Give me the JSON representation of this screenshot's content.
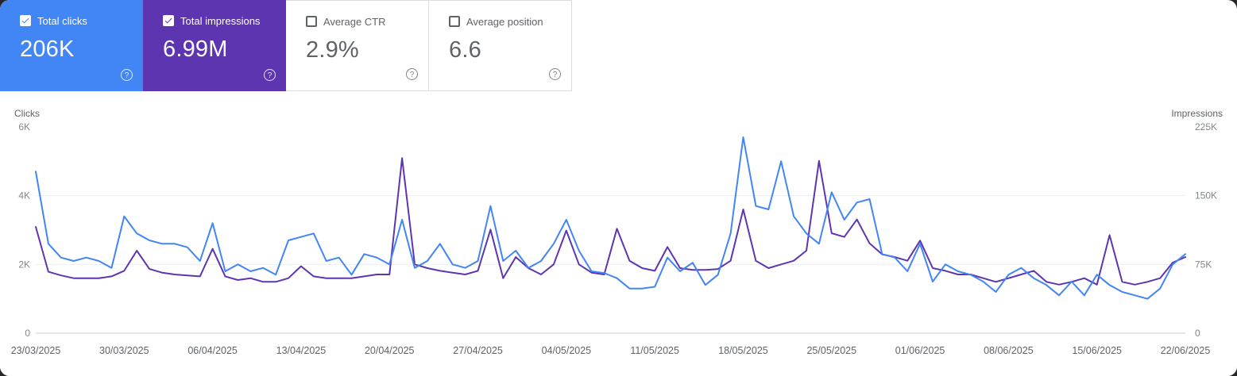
{
  "cards": [
    {
      "label": "Total clicks",
      "value": "206K",
      "selected": true,
      "color": "#4285f4",
      "help_icon": "question-mark"
    },
    {
      "label": "Total impressions",
      "value": "6.99M",
      "selected": true,
      "color": "#5e35b1",
      "help_icon": "question-mark"
    },
    {
      "label": "Average CTR",
      "value": "2.9%",
      "selected": false,
      "help_icon": "question-mark"
    },
    {
      "label": "Average position",
      "value": "6.6",
      "selected": false,
      "help_icon": "question-mark"
    }
  ],
  "chart_data": {
    "type": "line",
    "x_dates": [
      "23/03/2025",
      "30/03/2025",
      "06/04/2025",
      "13/04/2025",
      "20/04/2025",
      "27/04/2025",
      "04/05/2025",
      "11/05/2025",
      "18/05/2025",
      "25/05/2025",
      "01/06/2025",
      "08/06/2025",
      "15/06/2025",
      "22/06/2025"
    ],
    "left_axis": {
      "label": "Clicks",
      "max": 6000,
      "tick_values": [
        0,
        2000,
        4000,
        6000
      ],
      "tick_labels": [
        "0",
        "2K",
        "4K",
        "6K"
      ]
    },
    "right_axis": {
      "label": "Impressions",
      "max": 225000,
      "tick_values": [
        0,
        75000,
        150000,
        225000
      ],
      "tick_labels": [
        "0",
        "75K",
        "150K",
        "225K"
      ]
    },
    "grid": "horizontal-only",
    "legend_position": "none",
    "series": [
      {
        "name": "Total impressions",
        "axis": "right",
        "color": "#5e35b1",
        "values": [
          116000,
          67000,
          63000,
          60000,
          60000,
          60000,
          62000,
          68000,
          90000,
          70000,
          66000,
          64000,
          63000,
          62000,
          92000,
          62000,
          58000,
          60000,
          56000,
          56000,
          60000,
          73000,
          62000,
          60000,
          60000,
          60000,
          62000,
          64000,
          64000,
          191000,
          75000,
          71000,
          68000,
          66000,
          64000,
          68000,
          113000,
          60000,
          83000,
          71000,
          64000,
          75000,
          112000,
          75000,
          66000,
          64000,
          114000,
          79000,
          71000,
          68000,
          94000,
          71000,
          69000,
          69000,
          70000,
          79000,
          135000,
          79000,
          71000,
          75000,
          79000,
          90000,
          188000,
          109000,
          105000,
          124000,
          98000,
          86000,
          83000,
          79000,
          101000,
          71000,
          68000,
          64000,
          64000,
          60000,
          56000,
          60000,
          64000,
          68000,
          56000,
          53000,
          56000,
          60000,
          53000,
          107000,
          56000,
          53000,
          56000,
          60000,
          77000,
          83000
        ]
      },
      {
        "name": "Total clicks",
        "axis": "left",
        "color": "#4285f4",
        "values": [
          4700,
          2600,
          2200,
          2100,
          2200,
          2100,
          1900,
          3400,
          2900,
          2700,
          2600,
          2600,
          2500,
          2100,
          3200,
          1800,
          2000,
          1800,
          1900,
          1700,
          2700,
          2800,
          2900,
          2100,
          2200,
          1700,
          2300,
          2200,
          2000,
          3300,
          1900,
          2100,
          2600,
          2000,
          1900,
          2100,
          3700,
          2100,
          2400,
          1900,
          2100,
          2600,
          3300,
          2400,
          1800,
          1750,
          1600,
          1300,
          1300,
          1350,
          2200,
          1800,
          2050,
          1400,
          1700,
          2900,
          5700,
          3700,
          3600,
          5000,
          3400,
          2900,
          2600,
          4100,
          3300,
          3800,
          3900,
          2300,
          2200,
          1800,
          2600,
          1500,
          2000,
          1800,
          1700,
          1500,
          1200,
          1700,
          1900,
          1600,
          1400,
          1100,
          1500,
          1100,
          1700,
          1400,
          1200,
          1100,
          1000,
          1300,
          2000,
          2300
        ]
      }
    ]
  }
}
